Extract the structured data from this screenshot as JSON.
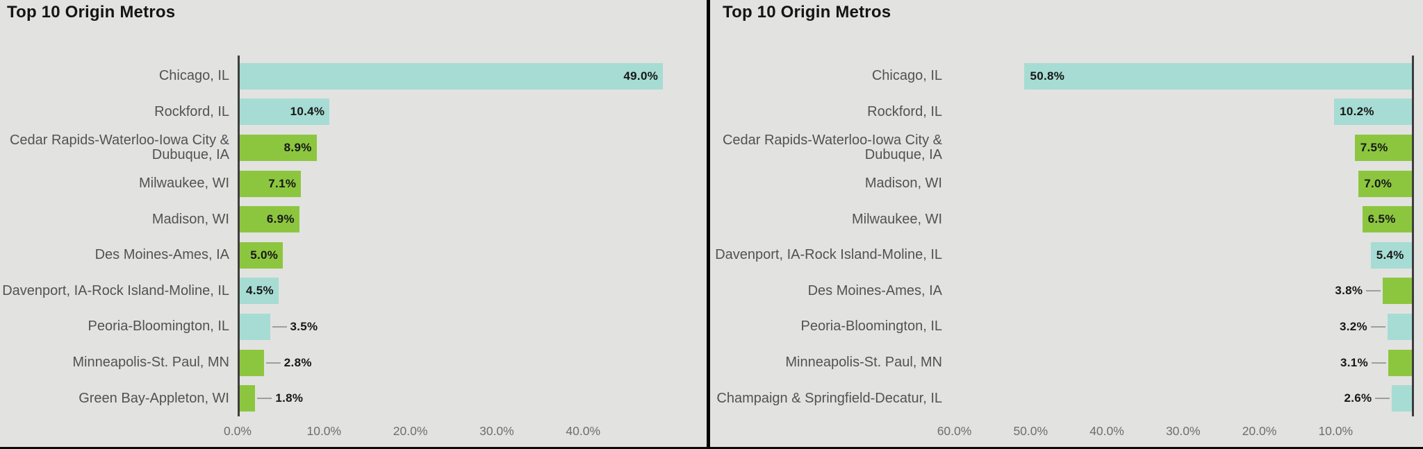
{
  "page": {
    "background": "#e2e2e1",
    "divider_color": "#050505",
    "axis_color": "#3d3d3d",
    "category_label_color": "#525252",
    "tick_label_color": "#6e6e6e",
    "value_label_color": "#171717",
    "leader_line_color": "#9e9e9e",
    "palette": {
      "illinois_teal": "#a6dcd3",
      "out_of_state_green": "#8cc63f"
    }
  },
  "chart_data": [
    {
      "type": "bar",
      "orientation": "horizontal",
      "bar_direction": "left-to-right",
      "title": "Top 10 Origin Metros",
      "grid": false,
      "legend": false,
      "xlim": [
        0,
        54.3
      ],
      "categories": [
        "Chicago, IL",
        "Rockford, IL",
        "Cedar Rapids-Waterloo-Iowa City & Dubuque, IA",
        "Milwaukee, WI",
        "Madison, WI",
        "Des Moines-Ames, IA",
        "Davenport, IA-Rock Island-Moline, IL",
        "Peoria-Bloomington, IL",
        "Minneapolis-St. Paul, MN",
        "Green Bay-Appleton, WI"
      ],
      "values": [
        49.0,
        10.4,
        8.9,
        7.1,
        6.9,
        5.0,
        4.5,
        3.5,
        2.8,
        1.8
      ],
      "value_labels": [
        "49.0%",
        "10.4%",
        "8.9%",
        "7.1%",
        "6.9%",
        "5.0%",
        "4.5%",
        "3.5%",
        "2.8%",
        "1.8%"
      ],
      "colors": [
        "#a6dcd3",
        "#a6dcd3",
        "#8cc63f",
        "#8cc63f",
        "#8cc63f",
        "#8cc63f",
        "#a6dcd3",
        "#a6dcd3",
        "#8cc63f",
        "#8cc63f"
      ],
      "x_ticks": [
        {
          "label": "0.0%",
          "value": 0
        },
        {
          "label": "10.0%",
          "value": 10
        },
        {
          "label": "20.0%",
          "value": 20
        },
        {
          "label": "30.0%",
          "value": 30
        },
        {
          "label": "40.0%",
          "value": 40
        }
      ]
    },
    {
      "type": "bar",
      "orientation": "horizontal",
      "bar_direction": "right-to-left",
      "title": "Top 10 Origin Metros",
      "grid": false,
      "legend": false,
      "xlim": [
        0,
        60.5
      ],
      "categories": [
        "Chicago, IL",
        "Rockford, IL",
        "Cedar Rapids-Waterloo-Iowa City & Dubuque, IA",
        "Madison, WI",
        "Milwaukee, WI",
        "Davenport, IA-Rock Island-Moline, IL",
        "Des Moines-Ames, IA",
        "Peoria-Bloomington, IL",
        "Minneapolis-St. Paul, MN",
        "Champaign & Springfield-Decatur, IL"
      ],
      "values": [
        50.8,
        10.2,
        7.5,
        7.0,
        6.5,
        5.4,
        3.8,
        3.2,
        3.1,
        2.6
      ],
      "value_labels": [
        "50.8%",
        "10.2%",
        "7.5%",
        "7.0%",
        "6.5%",
        "5.4%",
        "3.8%",
        "3.2%",
        "3.1%",
        "2.6%"
      ],
      "colors": [
        "#a6dcd3",
        "#a6dcd3",
        "#8cc63f",
        "#8cc63f",
        "#8cc63f",
        "#a6dcd3",
        "#8cc63f",
        "#a6dcd3",
        "#8cc63f",
        "#a6dcd3"
      ],
      "x_ticks": [
        {
          "label": "60.0%",
          "value": 60
        },
        {
          "label": "50.0%",
          "value": 50
        },
        {
          "label": "40.0%",
          "value": 40
        },
        {
          "label": "30.0%",
          "value": 30
        },
        {
          "label": "20.0%",
          "value": 20
        },
        {
          "label": "10.0%",
          "value": 10
        }
      ]
    }
  ]
}
